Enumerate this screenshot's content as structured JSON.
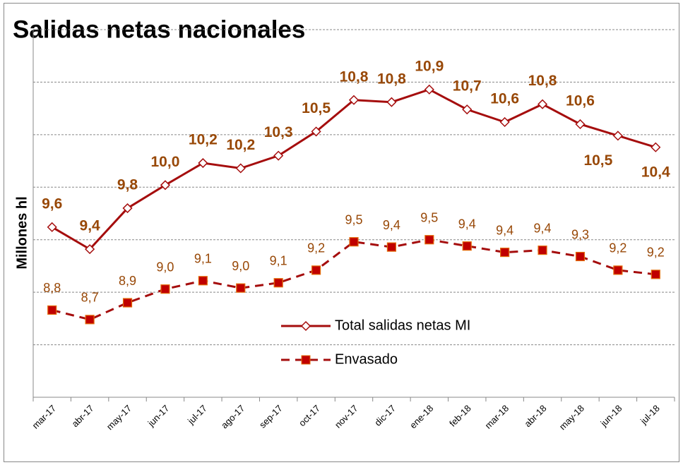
{
  "chart_data": {
    "type": "line",
    "title": "Salidas netas nacionales",
    "y_label": "Millones hl",
    "categories": [
      "mar-17",
      "abr-17",
      "may-17",
      "jun-17",
      "jul-17",
      "ago-17",
      "sep-17",
      "oct-17",
      "nov-17",
      "dic-17",
      "ene-18",
      "feb-18",
      "mar-18",
      "abr-18",
      "may-18",
      "jun-18",
      "jul-18"
    ],
    "series": [
      {
        "name": "Total salidas netas MI",
        "color": "#a50d0d",
        "marker": "diamond",
        "dash": false,
        "values": [
          9.62,
          9.41,
          9.8,
          10.02,
          10.23,
          10.18,
          10.3,
          10.53,
          10.83,
          10.81,
          10.93,
          10.74,
          10.62,
          10.79,
          10.6,
          10.49,
          10.38
        ],
        "value_labels": [
          "9,6",
          "9,4",
          "9,8",
          "10,0",
          "10,2",
          "10,2",
          "10,3",
          "10,5",
          "10,8",
          "10,8",
          "10,9",
          "10,7",
          "10,6",
          "10,8",
          "10,6",
          "10,5",
          "10,4"
        ]
      },
      {
        "name": "Envasado",
        "color": "#a50d0d",
        "marker": "square",
        "dash": true,
        "values": [
          8.83,
          8.74,
          8.9,
          9.03,
          9.11,
          9.04,
          9.09,
          9.21,
          9.48,
          9.43,
          9.5,
          9.44,
          9.38,
          9.4,
          9.34,
          9.21,
          9.17
        ],
        "value_labels": [
          "8,8",
          "8,7",
          "8,9",
          "9,0",
          "9,1",
          "9,0",
          "9,1",
          "9,2",
          "9,5",
          "9,4",
          "9,5",
          "9,4",
          "9,4",
          "9,4",
          "9,3",
          "9,2",
          "9,2"
        ]
      }
    ],
    "ylim": [
      8,
      11.5
    ],
    "yticks": [
      8,
      8.5,
      9,
      9.5,
      10,
      10.5,
      11,
      11.5
    ],
    "ytick_labels": false,
    "grid": true
  }
}
